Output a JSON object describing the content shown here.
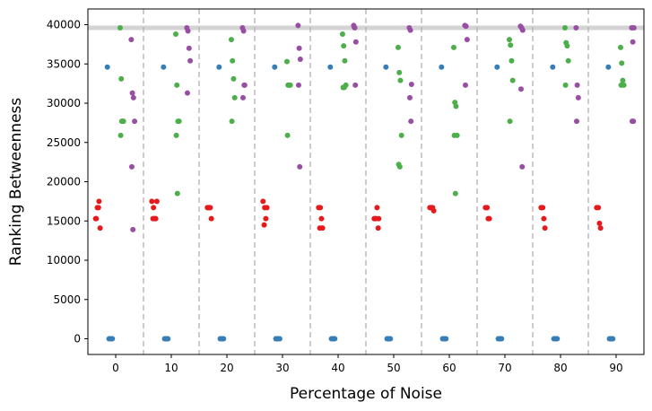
{
  "chart_data": {
    "type": "scatter",
    "title": "",
    "xlabel": "Percentage of Noise",
    "ylabel": "Ranking Betweenness",
    "xlim": [
      -5,
      95
    ],
    "ylim": [
      -2000,
      42000
    ],
    "xticks": [
      0,
      10,
      20,
      30,
      40,
      50,
      60,
      70,
      80,
      90
    ],
    "yticks": [
      0,
      5000,
      10000,
      15000,
      20000,
      25000,
      30000,
      35000,
      40000
    ],
    "xtick_labels": [
      "0",
      "10",
      "20",
      "30",
      "40",
      "50",
      "60",
      "70",
      "80",
      "90"
    ],
    "ytick_labels": [
      "0",
      "5000",
      "10000",
      "15000",
      "20000",
      "25000",
      "30000",
      "35000",
      "40000"
    ],
    "reference_line_y": 39600,
    "group_separators_x": [
      5,
      15,
      25,
      35,
      45,
      55,
      65,
      75,
      85
    ],
    "colors": {
      "blue": "#377eb8",
      "red": "#e41a1c",
      "green": "#4daf4a",
      "purple": "#984ea3",
      "reference_line": "#d3d3d3",
      "separator": "#bbbbbb"
    },
    "series": [
      {
        "name": "blue",
        "color": "#377eb8",
        "x": [
          -1.2,
          -1.0,
          -0.8,
          -0.6,
          -1.5,
          8.8,
          9.0,
          9.2,
          9.4,
          8.6,
          18.8,
          19.0,
          19.2,
          19.4,
          18.6,
          28.8,
          29.0,
          29.2,
          29.5,
          28.6,
          38.8,
          39.0,
          39.2,
          39.4,
          38.6,
          48.8,
          49.0,
          49.2,
          49.4,
          48.6,
          58.8,
          59.0,
          59.2,
          59.4,
          58.6,
          68.8,
          69.0,
          69.2,
          69.4,
          68.6,
          78.8,
          79.0,
          79.2,
          79.4,
          78.6,
          88.8,
          89.0,
          89.2,
          89.4,
          88.6
        ],
        "y": [
          0,
          0,
          0,
          0,
          34600,
          0,
          0,
          0,
          0,
          34600,
          0,
          0,
          0,
          0,
          34600,
          0,
          0,
          0,
          0,
          34600,
          0,
          0,
          0,
          0,
          34600,
          0,
          0,
          0,
          0,
          34600,
          0,
          0,
          0,
          0,
          34600,
          0,
          0,
          0,
          0,
          34600,
          0,
          0,
          0,
          0,
          34600,
          0,
          0,
          0,
          0,
          34600
        ]
      },
      {
        "name": "red",
        "color": "#e41a1c",
        "x": [
          -3.6,
          -3.3,
          -3.0,
          -2.8,
          -3.5,
          -3.1,
          6.5,
          6.8,
          7.0,
          7.2,
          6.7,
          7.4,
          16.5,
          16.8,
          17.0,
          17.2,
          16.7,
          26.5,
          26.8,
          27.0,
          27.2,
          26.7,
          36.5,
          36.8,
          37.0,
          37.2,
          36.7,
          46.5,
          46.8,
          47.0,
          47.2,
          46.7,
          47.3,
          56.5,
          56.8,
          57.0,
          57.2,
          56.7,
          66.5,
          66.8,
          67.0,
          67.2,
          66.7,
          76.5,
          76.8,
          77.0,
          77.2,
          76.7,
          86.5,
          86.8,
          87.0,
          87.2
        ],
        "y": [
          15300,
          16700,
          17500,
          14100,
          15300,
          16700,
          17500,
          16700,
          15300,
          15300,
          15300,
          17500,
          16700,
          16700,
          16700,
          15300,
          16700,
          17500,
          16700,
          15300,
          16700,
          14500,
          16700,
          16700,
          15300,
          14100,
          14100,
          15300,
          15300,
          16700,
          14100,
          15300,
          15300,
          16700,
          16700,
          16700,
          16300,
          16700,
          16700,
          16700,
          15300,
          15300,
          16700,
          16700,
          16700,
          15300,
          14100,
          16700,
          16700,
          16700,
          14700,
          14100
        ]
      },
      {
        "name": "green",
        "color": "#4daf4a",
        "x": [
          0.8,
          1.0,
          1.2,
          1.4,
          0.9,
          1.1,
          10.8,
          11.0,
          11.2,
          11.4,
          10.9,
          11.1,
          20.8,
          21.0,
          21.2,
          21.4,
          20.9,
          30.8,
          31.0,
          31.2,
          31.4,
          30.9,
          40.8,
          41.0,
          41.2,
          41.4,
          40.9,
          41.1,
          50.8,
          51.0,
          51.2,
          51.4,
          50.9,
          51.1,
          60.8,
          61.0,
          61.2,
          61.4,
          60.9,
          61.1,
          70.8,
          71.0,
          71.2,
          71.4,
          70.9,
          80.8,
          81.0,
          81.2,
          81.4,
          80.9,
          90.8,
          91.0,
          91.2,
          91.4,
          90.9
        ],
        "y": [
          39600,
          33100,
          27700,
          27700,
          25900,
          27700,
          38800,
          32300,
          27700,
          27700,
          25900,
          18500,
          38100,
          35400,
          33100,
          30700,
          27700,
          35300,
          32300,
          32300,
          32300,
          25900,
          38800,
          37300,
          35400,
          32300,
          32000,
          32000,
          37100,
          33900,
          32900,
          25900,
          22200,
          21900,
          37100,
          30100,
          29600,
          25900,
          25900,
          18500,
          38100,
          37400,
          35400,
          32900,
          27700,
          39600,
          37700,
          37300,
          35400,
          32300,
          37100,
          35100,
          32900,
          32300,
          32300
        ]
      },
      {
        "name": "purple",
        "color": "#984ea3",
        "x": [
          2.8,
          3.0,
          3.2,
          3.4,
          2.9,
          3.1,
          12.8,
          13.0,
          13.2,
          13.4,
          12.9,
          22.8,
          23.0,
          23.2,
          22.9,
          23.1,
          32.8,
          33.0,
          33.2,
          32.9,
          33.1,
          42.8,
          43.0,
          43.2,
          42.9,
          43.1,
          52.8,
          53.0,
          53.2,
          52.9,
          53.1,
          62.8,
          63.0,
          63.2,
          62.9,
          72.8,
          73.0,
          73.2,
          72.9,
          73.1,
          82.8,
          83.0,
          83.2,
          82.9,
          92.8,
          93.0,
          93.2,
          92.9,
          93.1
        ],
        "y": [
          38100,
          31300,
          30700,
          27700,
          21900,
          13900,
          39600,
          39200,
          37000,
          35400,
          31300,
          39600,
          39200,
          32300,
          30700,
          32300,
          39900,
          37000,
          35600,
          32300,
          21900,
          39900,
          39600,
          37800,
          39700,
          32300,
          39600,
          39300,
          32400,
          30700,
          27700,
          39900,
          39800,
          38100,
          32300,
          39800,
          39600,
          39300,
          31800,
          21900,
          39600,
          32300,
          30700,
          27700,
          39600,
          37800,
          39600,
          27700,
          27700
        ]
      }
    ]
  }
}
